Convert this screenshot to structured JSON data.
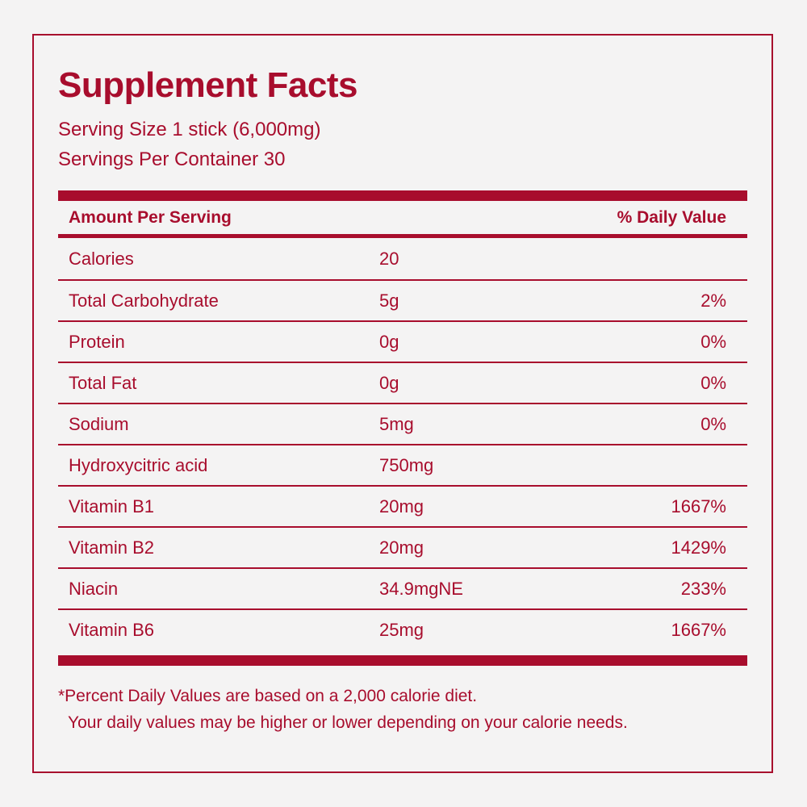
{
  "label": {
    "title": "Supplement Facts",
    "serving_size": "Serving Size 1 stick (6,000mg)",
    "servings_per_container": "Servings Per Container 30",
    "columns": {
      "amount_header": "Amount Per Serving",
      "dv_header": "% Daily Value"
    },
    "rows": [
      {
        "name": "Calories",
        "amount": "20",
        "dv": ""
      },
      {
        "name": "Total Carbohydrate",
        "amount": "5g",
        "dv": "2%"
      },
      {
        "name": "Protein",
        "amount": "0g",
        "dv": "0%"
      },
      {
        "name": "Total Fat",
        "amount": "0g",
        "dv": "0%"
      },
      {
        "name": "Sodium",
        "amount": "5mg",
        "dv": "0%"
      },
      {
        "name": "Hydroxycitric acid",
        "amount": "750mg",
        "dv": ""
      },
      {
        "name": "Vitamin B1",
        "amount": "20mg",
        "dv": "1667%"
      },
      {
        "name": "Vitamin B2",
        "amount": "20mg",
        "dv": "1429%"
      },
      {
        "name": "Niacin",
        "amount": "34.9mgNE",
        "dv": "233%"
      },
      {
        "name": "Vitamin B6",
        "amount": "25mg",
        "dv": "1667%"
      }
    ],
    "footnote_line1": "*Percent Daily Values are based on a 2,000 calorie diet.",
    "footnote_line2": "Your daily values may be higher or lower depending on your calorie needs.",
    "colors": {
      "accent": "#A80D2D",
      "background": "#F4F3F3"
    }
  }
}
